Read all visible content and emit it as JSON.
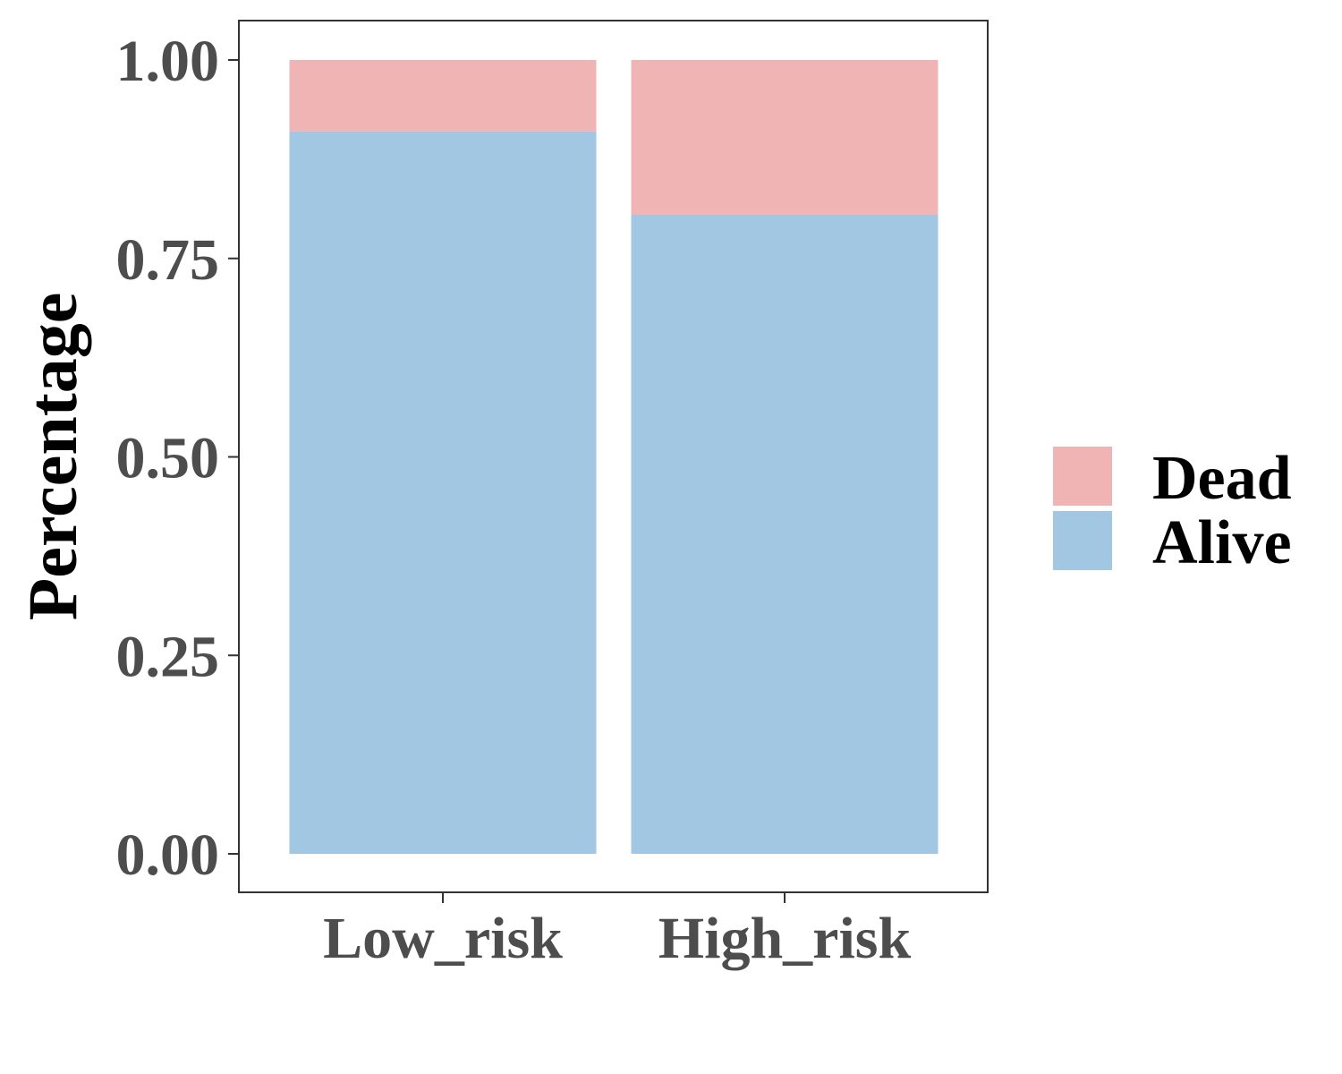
{
  "chart_data": {
    "type": "bar",
    "stacked": true,
    "ylabel": "Percentage",
    "xlabel": "",
    "ylim": [
      0,
      1
    ],
    "categories": [
      "Low_risk",
      "High_risk"
    ],
    "yticks": [
      0,
      0.25,
      0.5,
      0.75,
      1
    ],
    "ytick_labels": [
      "0.00",
      "0.25",
      "0.50",
      "0.75",
      "1.00"
    ],
    "series": [
      {
        "name": "Alive",
        "color": "#a2c7e2",
        "values": [
          0.91,
          0.805
        ]
      },
      {
        "name": "Dead",
        "color": "#f0b4b4",
        "values": [
          0.09,
          0.195
        ]
      }
    ],
    "legend": {
      "placement": "right",
      "entries": [
        "Dead",
        "Alive"
      ]
    },
    "grid": false
  }
}
